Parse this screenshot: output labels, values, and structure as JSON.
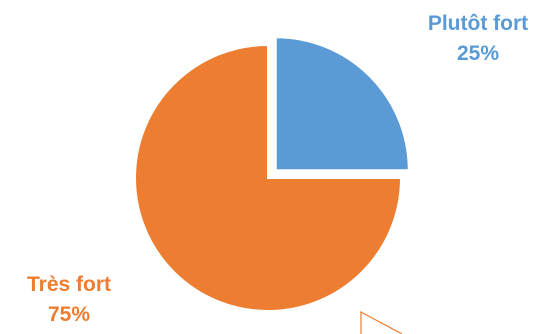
{
  "chart_data": {
    "type": "pie",
    "title": "",
    "slices": [
      {
        "label": "Plutôt fort",
        "value": 25,
        "value_label": "25%",
        "color": "#5B9BD5",
        "exploded": true
      },
      {
        "label": "Très fort",
        "value": 75,
        "value_label": "75%",
        "color": "#ED7D31",
        "exploded": false
      }
    ],
    "legend": "none"
  }
}
